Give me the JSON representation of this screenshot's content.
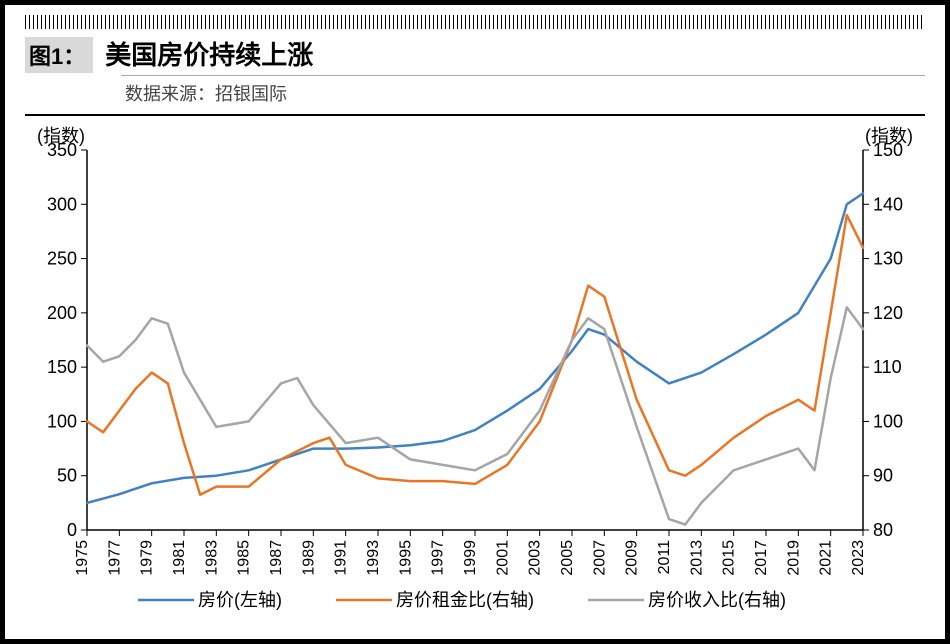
{
  "figure": {
    "label": "图1：",
    "title": "美国房价持续上涨",
    "source_label": "数据来源：",
    "source_value": "招银国际",
    "left_axis_unit": "(指数)",
    "right_axis_unit": "(指数)"
  },
  "chart": {
    "type": "line",
    "background_color": "#ffffff",
    "axis_color": "#000000",
    "axis_width": 1.5,
    "label_fontsize": 18,
    "xtick_fontsize": 16,
    "x": {
      "min": 1975,
      "max": 2023,
      "ticks": [
        1975,
        1977,
        1979,
        1981,
        1983,
        1985,
        1987,
        1989,
        1991,
        1993,
        1995,
        1997,
        1999,
        2001,
        2003,
        2005,
        2007,
        2009,
        2011,
        2013,
        2015,
        2017,
        2019,
        2021,
        2023
      ],
      "tick_rotation": -90
    },
    "y_left": {
      "min": 0,
      "max": 350,
      "ticks": [
        0,
        50,
        100,
        150,
        200,
        250,
        300,
        350
      ]
    },
    "y_right": {
      "min": 80,
      "max": 150,
      "ticks": [
        80,
        90,
        100,
        110,
        120,
        130,
        140,
        150
      ]
    },
    "series": [
      {
        "name": "房价(左轴)",
        "axis": "left",
        "color": "#3f82c4",
        "width": 2.5,
        "x": [
          1975,
          1977,
          1979,
          1981,
          1983,
          1985,
          1987,
          1989,
          1991,
          1993,
          1995,
          1997,
          1999,
          2001,
          2003,
          2005,
          2006,
          2007,
          2009,
          2011,
          2013,
          2015,
          2017,
          2019,
          2021,
          2022,
          2023
        ],
        "y": [
          25,
          33,
          43,
          48,
          50,
          55,
          65,
          75,
          75,
          76,
          78,
          82,
          92,
          110,
          130,
          165,
          185,
          180,
          155,
          135,
          145,
          162,
          180,
          200,
          250,
          300,
          310
        ]
      },
      {
        "name": "房价租金比(右轴)",
        "axis": "right",
        "color": "#e97625",
        "width": 2.5,
        "x": [
          1975,
          1976,
          1977,
          1978,
          1979,
          1980,
          1981,
          1982,
          1983,
          1985,
          1987,
          1989,
          1990,
          1991,
          1993,
          1995,
          1997,
          1999,
          2001,
          2003,
          2005,
          2006,
          2007,
          2009,
          2011,
          2012,
          2013,
          2015,
          2017,
          2019,
          2020,
          2021,
          2022,
          2023
        ],
        "y": [
          100,
          98,
          102,
          106,
          109,
          107,
          96,
          86.5,
          88,
          88,
          93,
          96,
          97,
          92,
          89.5,
          89,
          89,
          88.5,
          92,
          100,
          115,
          125,
          123,
          104,
          91,
          90,
          92,
          97,
          101,
          104,
          102,
          120,
          138,
          132
        ]
      },
      {
        "name": "房价收入比(右轴)",
        "axis": "right",
        "color": "#a5a5a5",
        "width": 2.5,
        "x": [
          1975,
          1976,
          1977,
          1978,
          1979,
          1980,
          1981,
          1983,
          1985,
          1987,
          1988,
          1989,
          1991,
          1993,
          1995,
          1997,
          1999,
          2001,
          2003,
          2005,
          2006,
          2007,
          2009,
          2011,
          2012,
          2013,
          2015,
          2017,
          2019,
          2020,
          2021,
          2022,
          2023
        ],
        "y": [
          114,
          111,
          112,
          115,
          119,
          118,
          109,
          99,
          100,
          107,
          108,
          103,
          96,
          97,
          93,
          92,
          91,
          94,
          102,
          115,
          119,
          117,
          99,
          82,
          81,
          85,
          91,
          93,
          95,
          91,
          108,
          121,
          117
        ]
      }
    ],
    "legend": {
      "position": "bottom",
      "line_length": 56,
      "fontsize": 18
    }
  }
}
